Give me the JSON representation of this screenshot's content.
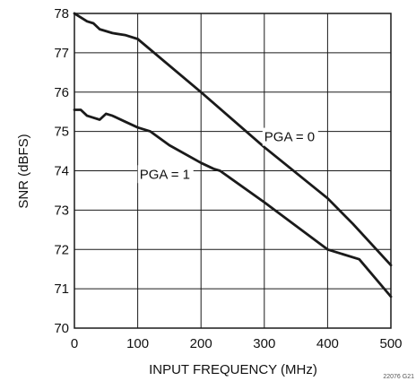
{
  "chart_data": {
    "type": "line",
    "title": "",
    "xlabel": "INPUT FREQUENCY (MHz)",
    "ylabel": "SNR (dBFS)",
    "xlim": [
      0,
      500
    ],
    "ylim": [
      70,
      78
    ],
    "xticks": [
      0,
      100,
      200,
      300,
      400,
      500
    ],
    "yticks": [
      70,
      71,
      72,
      73,
      74,
      75,
      76,
      77,
      78
    ],
    "grid": true,
    "legend": "none",
    "line_color": "#1a1a1a",
    "grid_color": "#1a1a1a",
    "series": [
      {
        "name": "PGA = 0",
        "x": [
          0,
          10,
          20,
          30,
          40,
          60,
          80,
          100,
          200,
          300,
          400,
          440,
          500
        ],
        "y": [
          78.0,
          77.9,
          77.8,
          77.75,
          77.6,
          77.5,
          77.45,
          77.35,
          76.0,
          74.6,
          73.3,
          72.65,
          71.6
        ]
      },
      {
        "name": "PGA = 1",
        "x": [
          0,
          10,
          20,
          30,
          40,
          50,
          60,
          80,
          100,
          120,
          150,
          200,
          220,
          230,
          300,
          400,
          450,
          500
        ],
        "y": [
          75.55,
          75.55,
          75.4,
          75.35,
          75.3,
          75.45,
          75.4,
          75.25,
          75.1,
          75.0,
          74.65,
          74.2,
          74.05,
          74.0,
          73.2,
          72.0,
          71.75,
          70.8
        ]
      }
    ],
    "annotations": [
      {
        "text": "PGA = 0",
        "x": 300,
        "y": 74.75
      },
      {
        "text": "PGA = 1",
        "x": 103,
        "y": 73.8
      }
    ],
    "figure_id": "22076 G21"
  }
}
